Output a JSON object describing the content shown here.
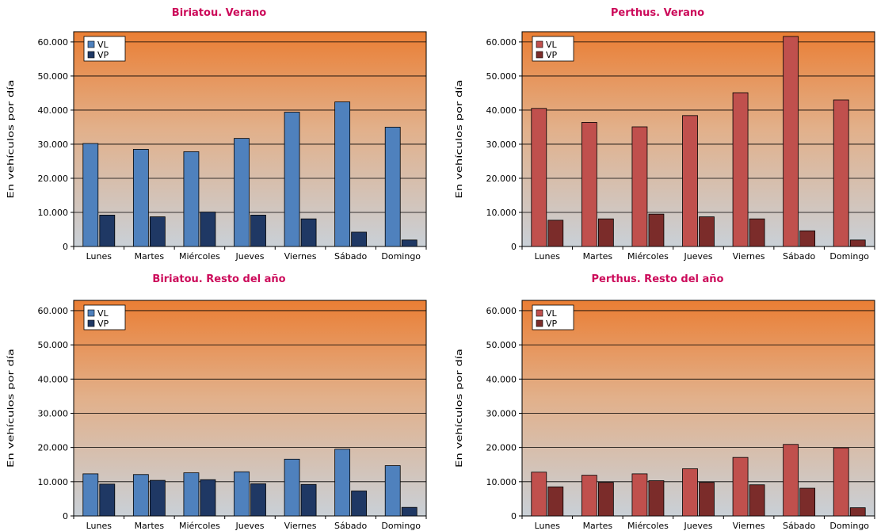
{
  "chart_data": [
    {
      "type": "bar",
      "title": "Biriatou. Verano",
      "ylabel": "En vehículos por día",
      "xlabel": "",
      "ylim": [
        0,
        63000
      ],
      "yticks": [
        "0",
        "10.000",
        "20.000",
        "30.000",
        "40.000",
        "50.000",
        "60.000"
      ],
      "categories": [
        "Lunes",
        "Martes",
        "Miércoles",
        "Jueves",
        "Viernes",
        "Sábado",
        "Domingo"
      ],
      "legend_position": "top-left",
      "grid": true,
      "series": [
        {
          "name": "VL",
          "color": "#4f81bd",
          "values": [
            30200,
            28500,
            27800,
            31700,
            39400,
            42400,
            35000
          ]
        },
        {
          "name": "VP",
          "color": "#1f3864",
          "values": [
            9200,
            8700,
            10100,
            9200,
            8100,
            4200,
            1900
          ]
        }
      ]
    },
    {
      "type": "bar",
      "title": "Perthus. Verano",
      "ylabel": "En vehículos por día",
      "xlabel": "",
      "ylim": [
        0,
        63000
      ],
      "yticks": [
        "0",
        "10.000",
        "20.000",
        "30.000",
        "40.000",
        "50.000",
        "60.000"
      ],
      "categories": [
        "Lunes",
        "Martes",
        "Miércoles",
        "Jueves",
        "Viernes",
        "Sábado",
        "Domingo"
      ],
      "legend_position": "top-left",
      "grid": true,
      "series": [
        {
          "name": "VL",
          "color": "#c0504d",
          "values": [
            40500,
            36400,
            35100,
            38400,
            45100,
            61600,
            43000
          ]
        },
        {
          "name": "VP",
          "color": "#7b2c2a",
          "values": [
            7700,
            8100,
            9500,
            8700,
            8100,
            4600,
            1900
          ]
        }
      ]
    },
    {
      "type": "bar",
      "title": "Biriatou. Resto del año",
      "ylabel": "En vehículos por día",
      "xlabel": "",
      "ylim": [
        0,
        63000
      ],
      "yticks": [
        "0",
        "10.000",
        "20.000",
        "30.000",
        "40.000",
        "50.000",
        "60.000"
      ],
      "categories": [
        "Lunes",
        "Martes",
        "Miércoles",
        "Jueves",
        "Viernes",
        "Sábado",
        "Domingo"
      ],
      "legend_position": "top-left",
      "grid": true,
      "series": [
        {
          "name": "VL",
          "color": "#4f81bd",
          "values": [
            12300,
            12100,
            12600,
            12900,
            16600,
            19500,
            14700
          ]
        },
        {
          "name": "VP",
          "color": "#1f3864",
          "values": [
            9300,
            10400,
            10600,
            9400,
            9200,
            7300,
            2500
          ]
        }
      ]
    },
    {
      "type": "bar",
      "title": "Perthus. Resto del año",
      "ylabel": "En vehículos por día",
      "xlabel": "",
      "ylim": [
        0,
        63000
      ],
      "yticks": [
        "0",
        "10.000",
        "20.000",
        "30.000",
        "40.000",
        "50.000",
        "60.000"
      ],
      "categories": [
        "Lunes",
        "Martes",
        "Miércoles",
        "Jueves",
        "Viernes",
        "Sábado",
        "Domingo"
      ],
      "legend_position": "top-left",
      "grid": true,
      "series": [
        {
          "name": "VL",
          "color": "#c0504d",
          "values": [
            12800,
            11900,
            12300,
            13800,
            17100,
            20900,
            19900
          ]
        },
        {
          "name": "VP",
          "color": "#7b2c2a",
          "values": [
            8500,
            9800,
            10300,
            9800,
            9100,
            8100,
            2400
          ]
        }
      ]
    }
  ]
}
